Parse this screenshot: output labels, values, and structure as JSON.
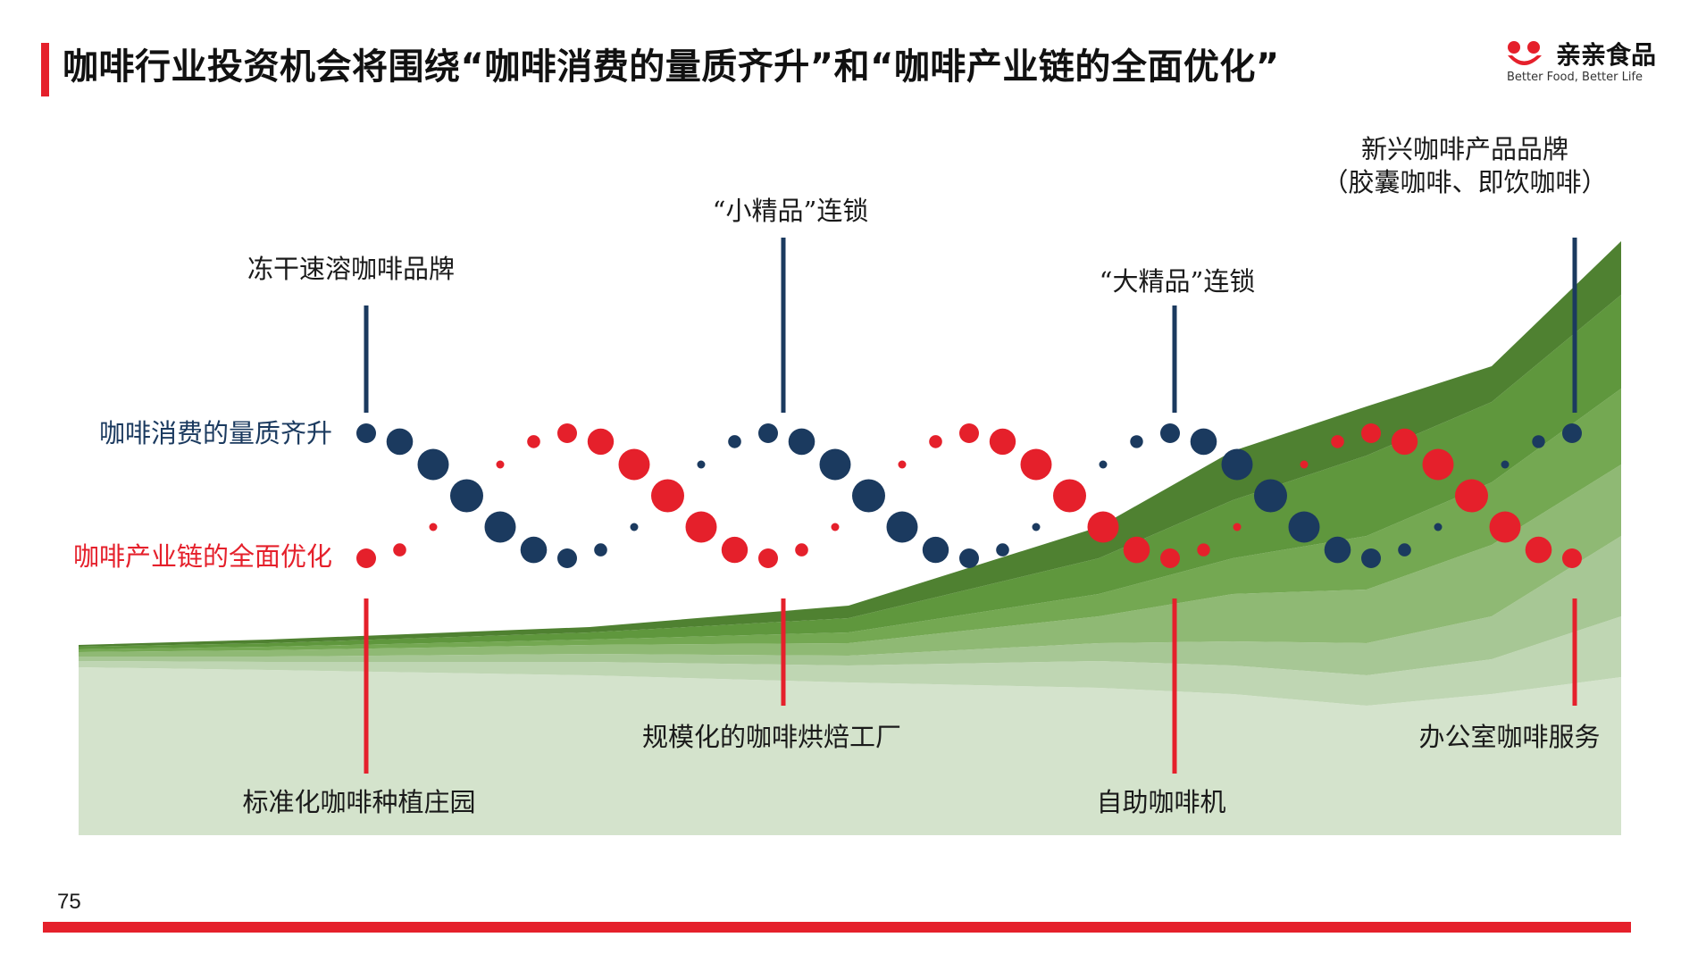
{
  "header": {
    "title": "咖啡行业投资机会将围绕“咖啡消费的量质齐升”和“咖啡产业链的全面优化”",
    "accent_color": "#e5202b"
  },
  "logo": {
    "name": "亲亲食品",
    "tagline": "Better Food, Better Life",
    "icon": "smile-cup-logo-icon"
  },
  "diagram": {
    "rows": {
      "consumption": {
        "label": "咖啡消费的量质齐升",
        "color": "#1b3a5f"
      },
      "industry": {
        "label": "咖啡产业链的全面优化",
        "color": "#e5202b"
      }
    },
    "consumption_milestones": [
      {
        "label": "冻干速溶咖啡品牌"
      },
      {
        "label": "“小精品”连锁"
      },
      {
        "label": "“大精品”连锁"
      },
      {
        "label": "新兴咖啡产品品牌",
        "label2": "（胶囊咖啡、即饮咖啡）"
      }
    ],
    "industry_milestones": [
      {
        "label": "标准化咖啡种植庄园"
      },
      {
        "label": "规模化的咖啡烘焙工厂"
      },
      {
        "label": "自助咖啡机"
      },
      {
        "label": "办公室咖啡服务"
      }
    ],
    "area_colors": [
      "#d4e3cc",
      "#bfd6b3",
      "#a7c795",
      "#8fb974",
      "#74a852",
      "#5f973d",
      "#4f8131"
    ]
  },
  "footer": {
    "page_number": "75"
  }
}
